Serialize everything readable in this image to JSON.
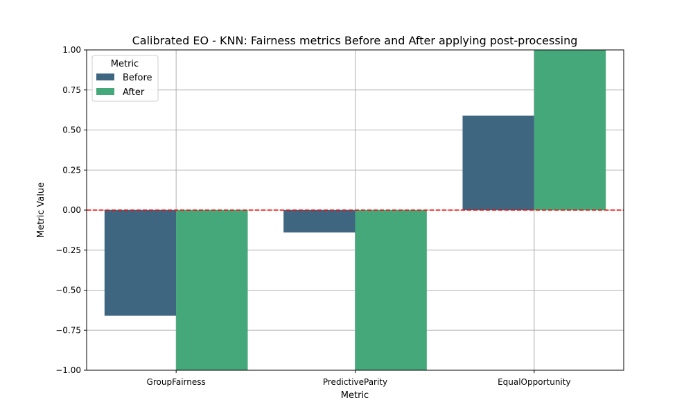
{
  "chart_data": {
    "type": "bar",
    "title": "Calibrated EO - KNN: Fairness metrics Before and After applying post-processing",
    "xlabel": "Metric",
    "ylabel": "Metric Value",
    "categories": [
      "GroupFairness",
      "PredictiveParity",
      "EqualOpportunity"
    ],
    "series": [
      {
        "name": "Before",
        "values": [
          -0.66,
          -0.14,
          0.59
        ]
      },
      {
        "name": "After",
        "values": [
          -1.0,
          -1.0,
          1.0
        ]
      }
    ],
    "ylim": [
      -1.0,
      1.0
    ],
    "yticks": [
      -1.0,
      -0.75,
      -0.5,
      -0.25,
      0.0,
      0.25,
      0.5,
      0.75,
      1.0
    ],
    "ytick_labels": [
      "−1.00",
      "−0.75",
      "−0.50",
      "−0.25",
      "0.00",
      "0.25",
      "0.50",
      "0.75",
      "1.00"
    ],
    "grid": true,
    "reference_line": {
      "y": 0,
      "color": "#ff0000",
      "style": "dashed"
    },
    "legend": {
      "title": "Metric",
      "placement": "top-left"
    },
    "colors": {
      "Before": "#3e6681",
      "After": "#45a87a"
    }
  }
}
